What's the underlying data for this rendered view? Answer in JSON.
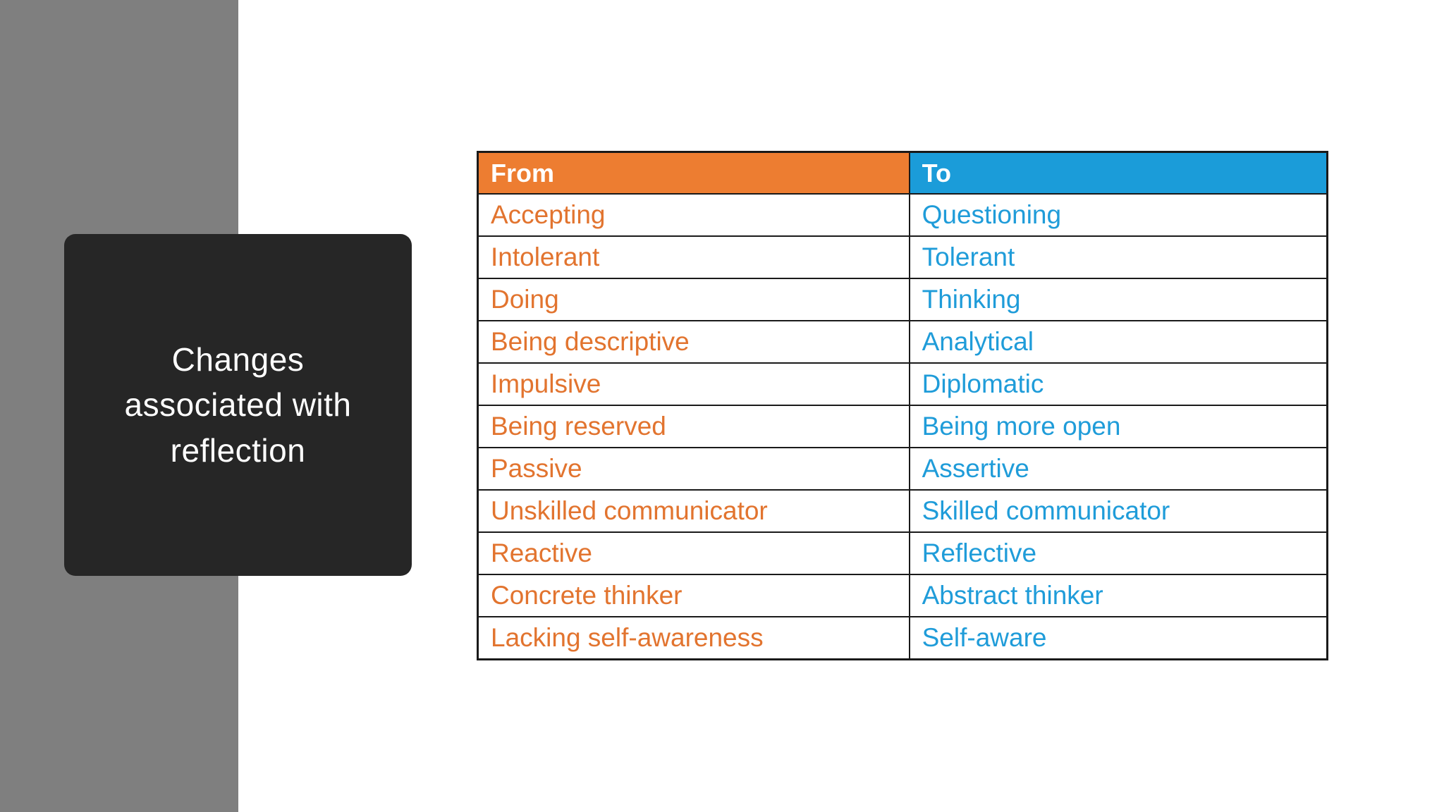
{
  "slide": {
    "title": "Changes associated with reflection"
  },
  "table": {
    "headers": [
      {
        "label": "From",
        "bg": "#ED7D31"
      },
      {
        "label": "To",
        "bg": "#1B9CD9"
      }
    ],
    "rows": [
      {
        "from": "Accepting",
        "to": "Questioning"
      },
      {
        "from": "Intolerant",
        "to": "Tolerant"
      },
      {
        "from": "Doing",
        "to": "Thinking"
      },
      {
        "from": "Being descriptive",
        "to": "Analytical"
      },
      {
        "from": "Impulsive",
        "to": "Diplomatic"
      },
      {
        "from": "Being reserved",
        "to": "Being more open"
      },
      {
        "from": "Passive",
        "to": "Assertive"
      },
      {
        "from": "Unskilled communicator",
        "to": "Skilled communicator"
      },
      {
        "from": "Reactive",
        "to": "Reflective"
      },
      {
        "from": "Concrete thinker",
        "to": "Abstract thinker"
      },
      {
        "from": "Lacking self-awareness",
        "to": "Self-aware"
      }
    ]
  },
  "colors": {
    "gray_band": "#7F7F7F",
    "card_bg": "#262626",
    "card_text": "#FFFFFF",
    "orange": "#ED7D31",
    "blue": "#1B9CD9",
    "orange_text": "#E2742F",
    "blue_text": "#1F9CD9",
    "border": "#1A1A1A",
    "page_bg": "#FFFFFF"
  }
}
